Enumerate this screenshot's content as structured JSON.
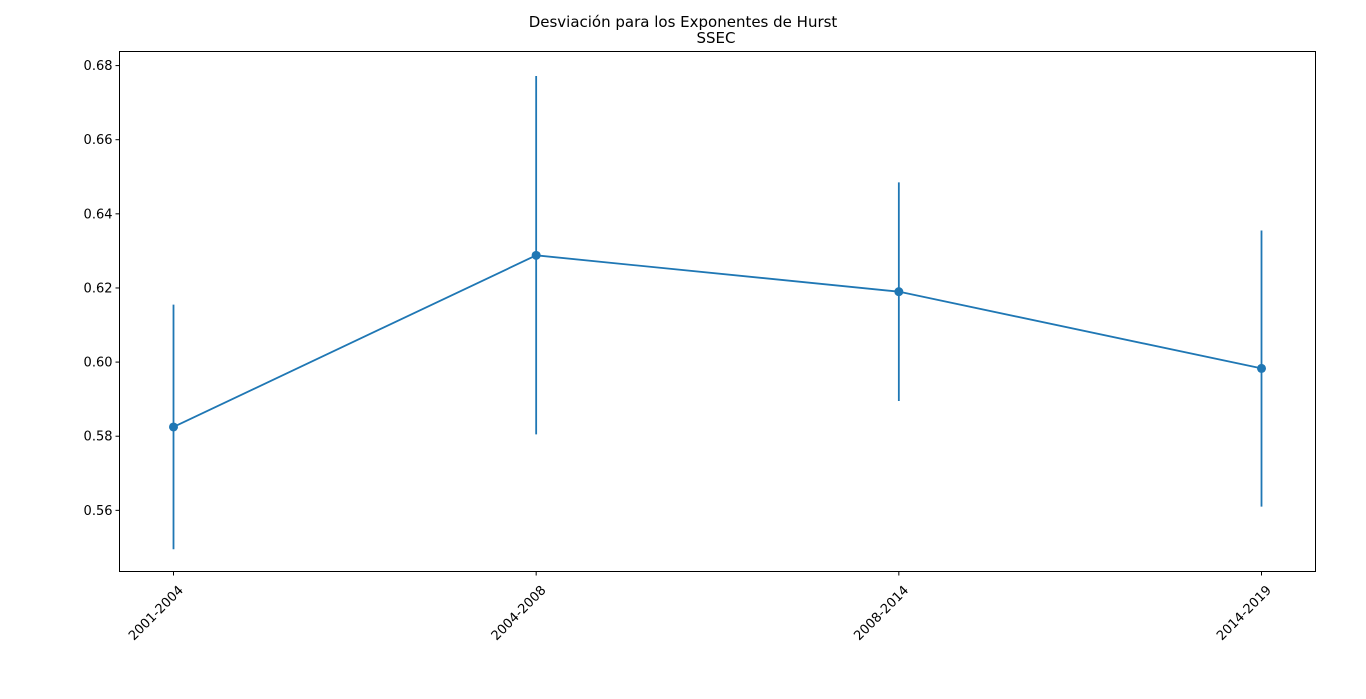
{
  "chart_data": {
    "type": "line",
    "title": "Desviación para los Exponentes de Hurst",
    "subtitle": "SSEC",
    "xlabel": "",
    "ylabel": "",
    "categories": [
      "2001-2004",
      "2004-2008",
      "2008-2014",
      "2014-2019"
    ],
    "series": [
      {
        "values": [
          0.5825,
          0.6288,
          0.619,
          0.5983
        ],
        "error_low": [
          0.5495,
          0.5805,
          0.5895,
          0.561
        ],
        "error_high": [
          0.6155,
          0.6772,
          0.6485,
          0.6355
        ],
        "color": "#1f77b4"
      }
    ],
    "yticks": [
      "0.56",
      "0.58",
      "0.60",
      "0.62",
      "0.64",
      "0.66",
      "0.68"
    ],
    "ylim": [
      0.5435,
      0.6838
    ],
    "grid": false,
    "x_tick_rotation": "45 degrees"
  }
}
